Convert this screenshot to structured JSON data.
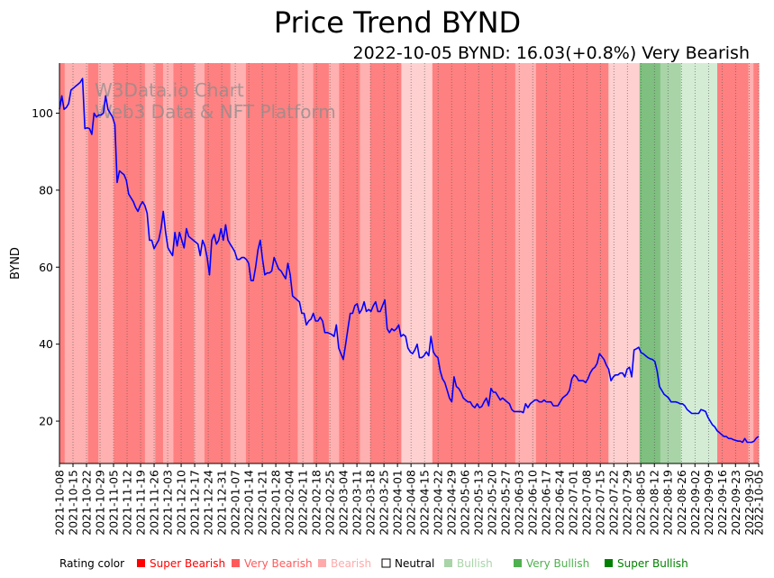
{
  "chart_data": {
    "type": "line",
    "title": "Price Trend BYND",
    "subtitle": "2022-10-05 BYND: 16.03(+0.8%) Very Bearish",
    "xlabel": "",
    "ylabel": "BYND",
    "ylim": [
      9,
      113
    ],
    "yticks": [
      20,
      40,
      60,
      80,
      100
    ],
    "watermark": [
      "W3Data.io Chart",
      "Web3 Data & NFT Platform"
    ],
    "line_color": "#0000ff",
    "xticks": [
      "2021-10-08",
      "2021-10-15",
      "2021-10-22",
      "2021-10-29",
      "2021-11-05",
      "2021-11-12",
      "2021-11-19",
      "2021-11-26",
      "2021-12-03",
      "2021-12-10",
      "2021-12-17",
      "2021-12-24",
      "2021-12-31",
      "2022-01-07",
      "2022-01-14",
      "2022-01-21",
      "2022-01-28",
      "2022-02-04",
      "2022-02-11",
      "2022-02-18",
      "2022-02-25",
      "2022-03-04",
      "2022-03-11",
      "2022-03-18",
      "2022-03-25",
      "2022-04-01",
      "2022-04-08",
      "2022-04-15",
      "2022-04-22",
      "2022-04-29",
      "2022-05-06",
      "2022-05-13",
      "2022-05-20",
      "2022-05-27",
      "2022-06-03",
      "2022-06-10",
      "2022-06-17",
      "2022-06-24",
      "2022-07-01",
      "2022-07-08",
      "2022-07-15",
      "2022-07-22",
      "2022-07-29",
      "2022-08-05",
      "2022-08-12",
      "2022-08-19",
      "2022-08-26",
      "2022-09-02",
      "2022-09-09",
      "2022-09-16",
      "2022-09-23",
      "2022-09-30",
      "2022-10-05"
    ],
    "rating_colors": {
      "super_bearish": "#ff0000",
      "very_bearish": "#ff8080",
      "bearish": "#ffb0b0",
      "neutral": "#ffffff",
      "bullish": "#d4ecd4",
      "very_bullish": "#a8d4a8",
      "super_bullish": "#7fbf7f"
    },
    "rating_bands": [
      {
        "start": 0,
        "end": 1,
        "rating": "very_bearish"
      },
      {
        "start": 1,
        "end": 5.5,
        "rating": "bearish"
      },
      {
        "start": 5.5,
        "end": 7.5,
        "rating": "very_bearish"
      },
      {
        "start": 7.5,
        "end": 10.5,
        "rating": "bearish"
      },
      {
        "start": 10.5,
        "end": 16.5,
        "rating": "very_bearish"
      },
      {
        "start": 16.5,
        "end": 18.5,
        "rating": "bearish"
      },
      {
        "start": 18.5,
        "end": 20,
        "rating": "very_bearish"
      },
      {
        "start": 20,
        "end": 22,
        "rating": "bearish"
      },
      {
        "start": 22,
        "end": 26,
        "rating": "very_bearish"
      },
      {
        "start": 26,
        "end": 28,
        "rating": "bearish"
      },
      {
        "start": 28,
        "end": 33,
        "rating": "very_bearish"
      },
      {
        "start": 33,
        "end": 36,
        "rating": "bearish"
      },
      {
        "start": 36,
        "end": 46,
        "rating": "very_bearish"
      },
      {
        "start": 46,
        "end": 49,
        "rating": "bearish"
      },
      {
        "start": 49,
        "end": 52,
        "rating": "very_bearish"
      },
      {
        "start": 52,
        "end": 54,
        "rating": "bearish"
      },
      {
        "start": 54,
        "end": 58,
        "rating": "very_bearish"
      },
      {
        "start": 58,
        "end": 60,
        "rating": "bearish"
      },
      {
        "start": 60,
        "end": 66,
        "rating": "very_bearish"
      },
      {
        "start": 66,
        "end": 72,
        "rating": "bullish_red"
      },
      {
        "start": 72,
        "end": 75,
        "rating": "very_bearish"
      },
      {
        "start": 75,
        "end": 88,
        "rating": "very_bearish"
      },
      {
        "start": 88,
        "end": 92,
        "rating": "bearish"
      },
      {
        "start": 92,
        "end": 99,
        "rating": "very_bearish"
      },
      {
        "start": 99,
        "end": 106,
        "rating": "very_bearish"
      },
      {
        "start": 106,
        "end": 112,
        "rating": "bullish_red"
      },
      {
        "start": 112,
        "end": 116,
        "rating": "super_bullish"
      },
      {
        "start": 116,
        "end": 120,
        "rating": "very_bullish"
      },
      {
        "start": 120,
        "end": 127,
        "rating": "bullish"
      },
      {
        "start": 127,
        "end": 133,
        "rating": "very_bearish"
      },
      {
        "start": 133,
        "end": 134,
        "rating": "bearish"
      },
      {
        "start": 134,
        "end": 135,
        "rating": "very_bearish"
      }
    ],
    "prices": [
      101,
      104.5,
      101,
      101.5,
      102.5,
      106,
      106.5,
      107,
      107.5,
      108,
      109,
      96,
      96.2,
      96,
      94.5,
      100,
      99,
      99.5,
      99.5,
      100,
      104.5,
      101,
      100,
      99,
      97,
      82,
      85,
      84.5,
      84,
      82.5,
      79,
      78,
      77,
      75.5,
      74.5,
      76,
      77,
      76,
      74,
      67,
      67,
      64.8,
      66,
      67,
      70,
      74.5,
      69,
      65,
      64,
      63,
      69,
      65.5,
      69,
      67,
      65,
      70,
      68,
      67.5,
      67,
      66.5,
      66,
      63,
      67,
      65.5,
      62.5,
      58,
      67,
      68.5,
      66,
      67,
      70,
      67,
      71,
      67,
      66,
      65,
      64,
      62,
      62,
      62.5,
      62.5,
      62,
      61,
      56.5,
      56.5,
      60,
      64.5,
      67,
      62,
      58,
      58.5,
      58.5,
      59,
      62.5,
      61,
      59.5,
      59,
      58,
      57,
      61,
      58,
      52.5,
      52,
      51.5,
      51,
      48,
      48,
      45,
      46,
      46.5,
      48,
      46,
      46,
      47,
      46,
      43,
      43,
      42.8,
      42.5,
      42,
      45,
      39,
      37.5,
      36,
      40,
      44,
      48,
      48,
      50,
      50.5,
      48,
      49,
      51,
      48.5,
      49,
      48.5,
      50,
      51,
      48.5,
      48.5,
      50,
      51.5,
      44,
      43,
      44,
      43.5,
      44,
      45,
      42,
      42.5,
      42,
      39,
      38,
      37.5,
      38.5,
      40,
      36.5,
      36.5,
      37,
      38,
      37,
      42,
      38,
      37,
      36.5,
      33,
      31,
      30,
      28,
      26,
      25,
      31.5,
      29,
      28.5,
      27.5,
      26,
      25.5,
      25,
      25,
      24,
      23.5,
      24.5,
      23.5,
      23.8,
      25,
      26,
      24,
      28.5,
      27.5,
      27.5,
      26.5,
      25.5,
      26,
      25.5,
      25,
      24.5,
      23,
      22.5,
      22.5,
      22.5,
      22.5,
      22.2,
      24.5,
      23.5,
      24.5,
      25,
      25.5,
      25.5,
      25,
      25,
      25.5,
      25,
      25,
      25,
      24,
      24,
      24,
      25,
      26,
      26.5,
      27,
      28,
      31,
      32,
      31.5,
      30.5,
      30.5,
      30.5,
      30,
      31,
      32.5,
      33.5,
      34,
      35,
      37.5,
      36.8,
      36,
      34.5,
      33.5,
      30.5,
      31.5,
      32,
      32,
      32.5,
      32.5,
      31.5,
      33.5,
      34,
      31.5,
      38.5,
      38.8,
      39.2,
      37.8,
      37.5,
      37,
      36.5,
      36.2,
      36,
      35.5,
      33,
      29,
      28,
      27,
      26.5,
      26,
      25,
      25,
      25,
      24.8,
      24.5,
      24.5,
      24,
      23,
      22.5,
      22,
      22,
      22,
      22,
      23,
      22.8,
      22.5,
      21,
      20,
      19,
      18.5,
      17.5,
      17,
      16.5,
      16,
      16,
      15.5,
      15.5,
      15.2,
      15,
      14.8,
      14.8,
      14.5,
      15.5,
      14.5,
      14.5,
      14.5,
      14.8,
      15.6,
      16.03
    ]
  },
  "legend": {
    "label": "Rating color",
    "items": [
      {
        "label": "Super Bearish",
        "color": "#ff0000"
      },
      {
        "label": "Very Bearish",
        "color": "#ff5a5a"
      },
      {
        "label": "Bearish",
        "color": "#ffaaaa"
      },
      {
        "label": "Neutral",
        "color": "#000000"
      },
      {
        "label": "Bullish",
        "color": "#a8d4a8"
      },
      {
        "label": "Very Bullish",
        "color": "#4fb04f"
      },
      {
        "label": "Super Bullish",
        "color": "#008000"
      }
    ]
  }
}
